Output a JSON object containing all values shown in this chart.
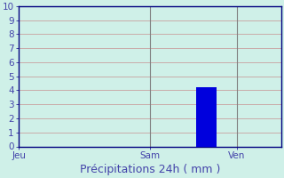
{
  "title": "Précipitations 24h ( mm )",
  "background_color": "#cff0e8",
  "plot_bg_color": "#cff0e8",
  "bar_x": [
    5
  ],
  "bar_heights": [
    4.2
  ],
  "bar_color": "#0000dd",
  "bar_width": 0.55,
  "xlim": [
    0,
    7
  ],
  "ylim": [
    0,
    10
  ],
  "yticks": [
    0,
    1,
    2,
    3,
    4,
    5,
    6,
    7,
    8,
    9,
    10
  ],
  "xtick_positions": [
    0,
    3.5,
    5.8
  ],
  "xtick_labels": [
    "Jeu",
    "Sam",
    "Ven"
  ],
  "vline_positions": [
    3.5,
    5.8
  ],
  "grid_color": "#c8a0a0",
  "grid_major_color": "#808080",
  "axis_color": "#000080",
  "tick_color": "#4444aa",
  "title_color": "#4444aa",
  "title_fontsize": 9,
  "tick_fontsize": 7.5
}
